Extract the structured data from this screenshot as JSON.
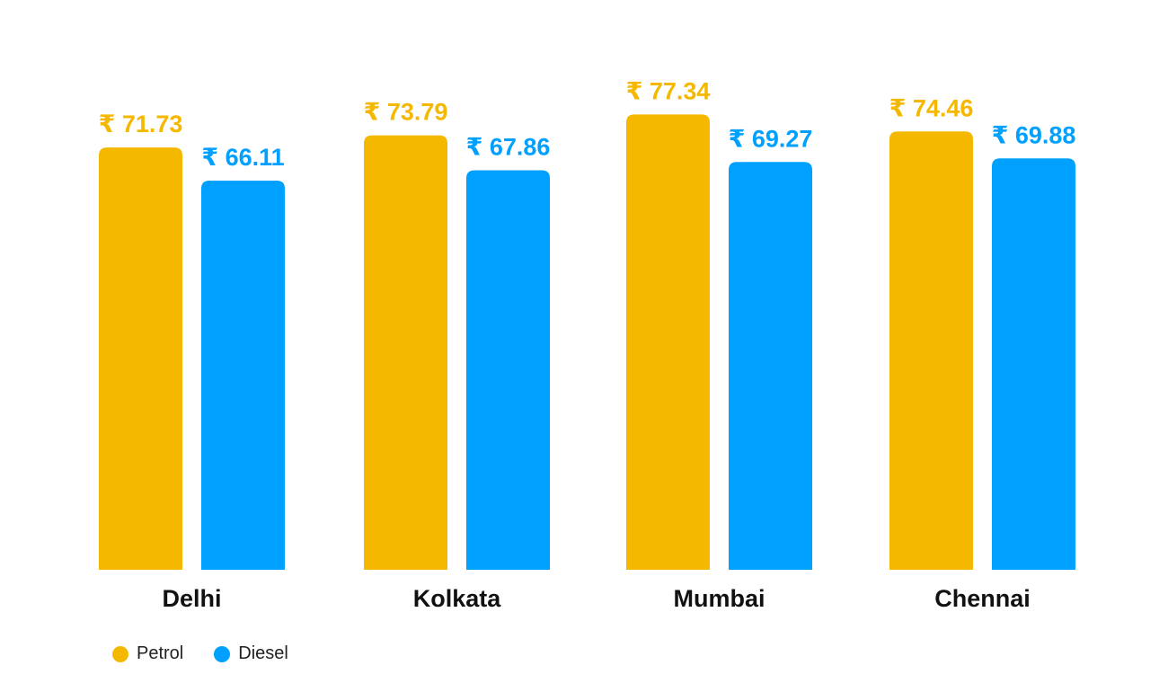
{
  "chart_data": {
    "type": "bar",
    "title": "",
    "xlabel": "",
    "ylabel": "",
    "categories": [
      "Delhi",
      "Kolkata",
      "Mumbai",
      "Chennai"
    ],
    "series": [
      {
        "name": "Petrol",
        "values": [
          71.73,
          73.79,
          77.34,
          74.46
        ],
        "labels": [
          "₹ 71.73",
          "₹ 73.79",
          "₹ 77.34",
          "₹ 74.46"
        ]
      },
      {
        "name": "Diesel",
        "values": [
          66.11,
          67.86,
          69.27,
          69.88
        ],
        "labels": [
          "₹ 66.11",
          "₹ 67.86",
          "₹ 69.27",
          "₹ 69.88"
        ]
      }
    ],
    "ylim": [
      0,
      80
    ],
    "grid": false,
    "legend_position": "bottom-left"
  },
  "colors": {
    "petrol": "#F5B800",
    "diesel": "#00A0FF",
    "category_text": "#111111"
  }
}
